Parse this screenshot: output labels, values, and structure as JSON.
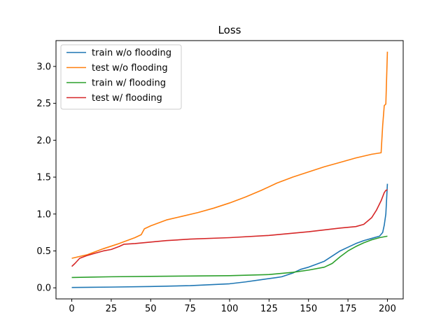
{
  "chart_data": {
    "type": "line",
    "title": "Loss",
    "xlabel": "",
    "ylabel": "",
    "xlim": [
      -10,
      210
    ],
    "ylim": [
      -0.15,
      3.35
    ],
    "xticks": [
      0,
      25,
      50,
      75,
      100,
      125,
      150,
      175,
      200
    ],
    "yticks": [
      0.0,
      0.5,
      1.0,
      1.5,
      2.0,
      2.5,
      3.0
    ],
    "legend_position": "top-left",
    "grid": false,
    "series": [
      {
        "name": "train w/o flooding",
        "color": "#1f77b4",
        "x": [
          0,
          25,
          50,
          75,
          100,
          110,
          120,
          130,
          133,
          140,
          145,
          150,
          155,
          160,
          165,
          170,
          175,
          180,
          185,
          190,
          195,
          197,
          198,
          199,
          200
        ],
        "y": [
          0.005,
          0.01,
          0.018,
          0.03,
          0.055,
          0.08,
          0.11,
          0.14,
          0.15,
          0.2,
          0.25,
          0.28,
          0.32,
          0.36,
          0.43,
          0.5,
          0.55,
          0.6,
          0.64,
          0.67,
          0.7,
          0.75,
          0.85,
          1.0,
          1.41
        ]
      },
      {
        "name": "test w/o flooding",
        "color": "#ff7f0e",
        "x": [
          0,
          10,
          20,
          30,
          40,
          44,
          46,
          50,
          60,
          70,
          80,
          90,
          100,
          110,
          120,
          130,
          140,
          150,
          160,
          170,
          180,
          190,
          196,
          197,
          198,
          199,
          200
        ],
        "y": [
          0.4,
          0.45,
          0.53,
          0.6,
          0.68,
          0.72,
          0.8,
          0.84,
          0.92,
          0.97,
          1.02,
          1.08,
          1.15,
          1.23,
          1.32,
          1.42,
          1.5,
          1.57,
          1.64,
          1.7,
          1.76,
          1.81,
          1.83,
          2.2,
          2.47,
          2.49,
          3.2
        ]
      },
      {
        "name": "train w/ flooding",
        "color": "#2ca02c",
        "x": [
          0,
          25,
          50,
          75,
          100,
          125,
          140,
          150,
          160,
          165,
          170,
          175,
          180,
          185,
          190,
          195,
          200
        ],
        "y": [
          0.14,
          0.15,
          0.155,
          0.16,
          0.165,
          0.18,
          0.21,
          0.24,
          0.28,
          0.33,
          0.42,
          0.5,
          0.56,
          0.61,
          0.65,
          0.68,
          0.7
        ]
      },
      {
        "name": "test w/ flooding",
        "color": "#d62728",
        "x": [
          0,
          2,
          5,
          10,
          15,
          20,
          25,
          30,
          33,
          40,
          50,
          60,
          75,
          100,
          125,
          150,
          170,
          180,
          185,
          190,
          193,
          196,
          198,
          199,
          200
        ],
        "y": [
          0.29,
          0.33,
          0.4,
          0.44,
          0.47,
          0.5,
          0.52,
          0.56,
          0.59,
          0.6,
          0.62,
          0.64,
          0.66,
          0.68,
          0.71,
          0.76,
          0.81,
          0.83,
          0.86,
          0.95,
          1.05,
          1.18,
          1.29,
          1.32,
          1.33
        ]
      }
    ]
  }
}
